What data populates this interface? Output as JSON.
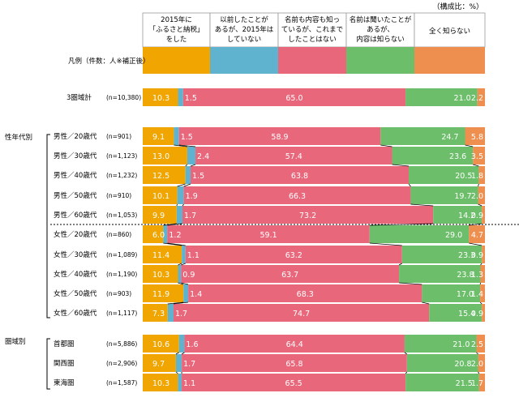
{
  "chart_data": {
    "type": "bar",
    "stacked": true,
    "orientation": "horizontal",
    "unit_note": "（構成比：%）",
    "legend_caption": "凡例（件数：人※補正後）",
    "series": [
      {
        "name": "2015年に「ふるさと納税」をした",
        "color": "#F0A500"
      },
      {
        "name": "以前したことがあるが、2015年はしていない",
        "color": "#5FB3CE"
      },
      {
        "name": "名前も内容も知っているが、これまでしたことはない",
        "color": "#E8677B"
      },
      {
        "name": "名前は聞いたことがあるが、内容は知らない",
        "color": "#6CBE6A"
      },
      {
        "name": "全く知らない",
        "color": "#EE8F50"
      }
    ],
    "groups": [
      {
        "label": "",
        "rows": [
          {
            "label": "3圏域計",
            "n": "(n=10,380)",
            "values": [
              10.3,
              1.5,
              65.0,
              21.0,
              2.2
            ],
            "labels": [
              "10.3",
              "1.5",
              "65.0",
              "21.0",
              "2.2"
            ]
          }
        ]
      },
      {
        "label": "性年代別",
        "rows": [
          {
            "label": "男性／20歳代",
            "n": "(n=901)",
            "values": [
              9.1,
              1.5,
              58.9,
              24.7,
              5.8
            ],
            "labels": [
              "9.1",
              "1.5",
              "58.9",
              "24.7",
              "5.8"
            ]
          },
          {
            "label": "男性／30歳代",
            "n": "(n=1,123)",
            "values": [
              13.0,
              2.4,
              57.4,
              23.6,
              3.5
            ],
            "labels": [
              "13.0",
              "2.4",
              "57.4",
              "23.6",
              "3.5"
            ]
          },
          {
            "label": "男性／40歳代",
            "n": "(n=1,232)",
            "values": [
              12.5,
              1.5,
              63.8,
              20.5,
              1.8
            ],
            "labels": [
              "12.5",
              "1.5",
              "63.8",
              "20.5",
              "1.8"
            ]
          },
          {
            "label": "男性／50歳代",
            "n": "(n=910)",
            "values": [
              10.1,
              1.9,
              66.3,
              19.7,
              2.0
            ],
            "labels": [
              "10.1",
              "1.9",
              "66.3",
              "19.7",
              "2.0"
            ]
          },
          {
            "label": "男性／60歳代",
            "n": "(n=1,053)",
            "values": [
              9.9,
              1.7,
              73.2,
              14.2,
              0.9
            ],
            "labels": [
              "9.9",
              "1.7",
              "73.2",
              "14.2",
              "0.9"
            ]
          },
          {
            "label": "女性／20歳代",
            "n": "(n=860)",
            "values": [
              6.0,
              1.2,
              59.1,
              29.0,
              4.7
            ],
            "labels": [
              "6.0",
              "1.2",
              "59.1",
              "29.0",
              "4.7"
            ]
          },
          {
            "label": "女性／30歳代",
            "n": "(n=1,089)",
            "values": [
              11.4,
              1.1,
              63.2,
              23.3,
              0.9
            ],
            "labels": [
              "11.4",
              "1.1",
              "63.2",
              "23.3",
              "0.9"
            ]
          },
          {
            "label": "女性／40歳代",
            "n": "(n=1,190)",
            "values": [
              10.3,
              0.9,
              63.7,
              23.8,
              1.3
            ],
            "labels": [
              "10.3",
              "0.9",
              "63.7",
              "23.8",
              "1.3"
            ]
          },
          {
            "label": "女性／50歳代",
            "n": "(n=903)",
            "values": [
              11.9,
              1.4,
              68.3,
              17.0,
              1.4
            ],
            "labels": [
              "11.9",
              "1.4",
              "68.3",
              "17.0",
              "1.4"
            ]
          },
          {
            "label": "女性／60歳代",
            "n": "(n=1,117)",
            "values": [
              7.3,
              1.7,
              74.7,
              15.4,
              0.9
            ],
            "labels": [
              "7.3",
              "1.7",
              "74.7",
              "15.4",
              "0.9"
            ]
          }
        ]
      },
      {
        "label": "圏域別",
        "rows": [
          {
            "label": "首都圏",
            "n": "(n=5,886)",
            "values": [
              10.6,
              1.6,
              64.4,
              21.0,
              2.5
            ],
            "labels": [
              "10.6",
              "1.6",
              "64.4",
              "21.0",
              "2.5"
            ]
          },
          {
            "label": "関西圏",
            "n": "(n=2,906)",
            "values": [
              9.7,
              1.7,
              65.8,
              20.8,
              2.0
            ],
            "labels": [
              "9.7",
              "1.7",
              "65.8",
              "20.8",
              "2.0"
            ]
          },
          {
            "label": "東海圏",
            "n": "(n=1,587)",
            "values": [
              10.3,
              1.1,
              65.5,
              21.5,
              1.7
            ],
            "labels": [
              "10.3",
              "1.1",
              "65.5",
              "21.5",
              "1.7"
            ]
          }
        ]
      }
    ],
    "xlim": [
      0,
      100
    ],
    "grid": false,
    "legend_position": "top"
  }
}
